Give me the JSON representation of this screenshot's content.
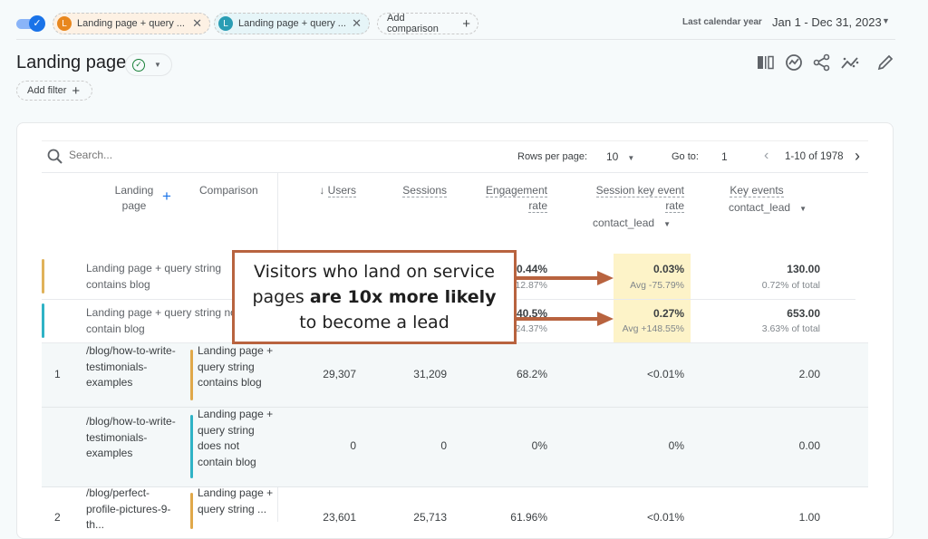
{
  "comparisons": {
    "toggle": "on",
    "chips": [
      {
        "letter": "L",
        "label": "Landing page + query ...",
        "color": "#e8871e",
        "bg": "#fdf1e4"
      },
      {
        "letter": "L",
        "label": "Landing page + query ...",
        "color": "#2a9db4",
        "bg": "#e6f5f8"
      }
    ],
    "add_comparison": "Add comparison"
  },
  "date": {
    "preset": "Last calendar year",
    "range": "Jan 1 - Dec 31, 2023"
  },
  "title": "Landing page",
  "add_filter": "Add filter",
  "toolbar_icons": [
    "compare-icon",
    "insights-icon",
    "share-icon",
    "anomaly-icon",
    "edit-icon"
  ],
  "table": {
    "search_placeholder": "Search...",
    "rows_per_page_label": "Rows per page:",
    "rows_per_page": "10",
    "goto_label": "Go to:",
    "goto": "1",
    "range": "1-10 of 1978",
    "headers": {
      "landing": "Landing page",
      "comparison": "Comparison",
      "users": "Users",
      "sessions": "Sessions",
      "engagement": [
        "Engagement",
        "rate"
      ],
      "skr": [
        "Session key event",
        "rate"
      ],
      "skr_event": "contact_lead",
      "key_events": "Key events",
      "ke_event": "contact_lead"
    },
    "totals": [
      {
        "label": "Landing page + query string contains blog",
        "color": "#e0b25a",
        "engagement": "0.44%",
        "engagement_sub": "12.87%",
        "skr": "0.03%",
        "skr_sub": "Avg -75.79%",
        "ke": "130.00",
        "ke_sub": "0.72% of total"
      },
      {
        "label": "Landing page + query string not contain blog",
        "color": "#2fb3c6",
        "engagement": "40.5%",
        "engagement_sub": "24.37%",
        "skr": "0.27%",
        "skr_sub": "Avg +148.55%",
        "ke": "653.00",
        "ke_sub": "3.63% of total"
      }
    ],
    "rows": [
      {
        "index": "1",
        "page": "/blog/how-to-write-testimonials-examples",
        "comparison": "Landing page + query string contains blog",
        "color": "#e0a84a",
        "users": "29,307",
        "sessions": "31,209",
        "engagement": "68.2%",
        "skr": "<0.01%",
        "ke": "2.00"
      },
      {
        "index": "",
        "page": "/blog/how-to-write-testimonials-examples",
        "comparison": "Landing page + query string does not contain blog",
        "color": "#2fb3c6",
        "users": "0",
        "sessions": "0",
        "engagement": "0%",
        "skr": "0%",
        "ke": "0.00"
      },
      {
        "index": "2",
        "page": "/blog/perfect-profile-pictures-9-th...",
        "comparison": "Landing page + query string ...",
        "color": "#e0a84a",
        "users": "23,601",
        "sessions": "25,713",
        "engagement": "61.96%",
        "skr": "<0.01%",
        "ke": "1.00"
      }
    ]
  },
  "annotation": {
    "pre": "Visitors who land on service pages ",
    "bold": "are 10x more likely",
    "post": " to become a lead",
    "color": "#b8633f"
  }
}
